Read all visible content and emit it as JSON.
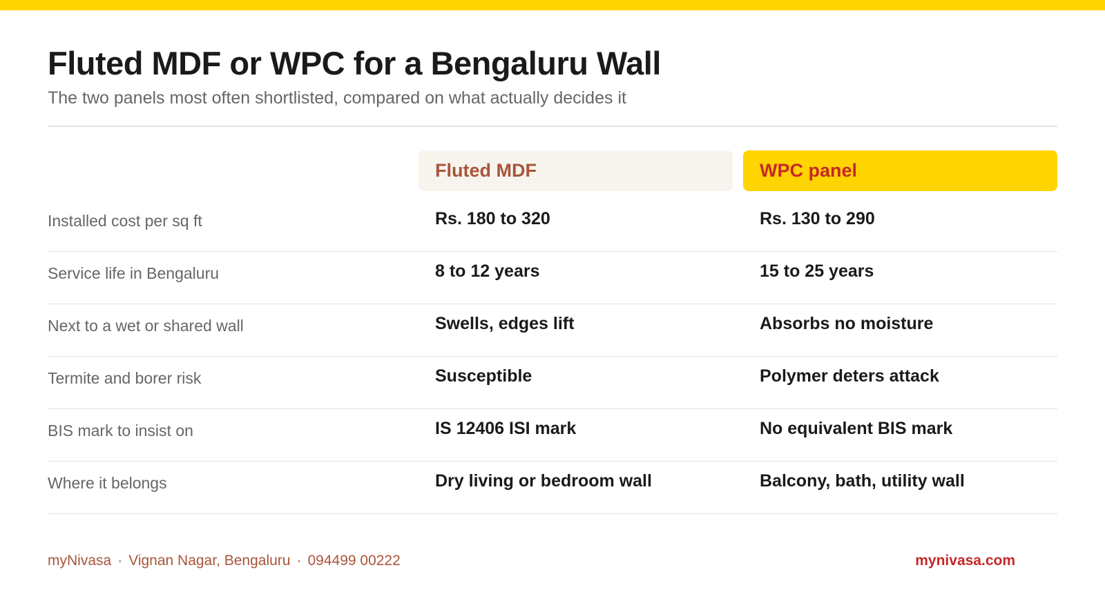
{
  "colors": {
    "accent_yellow": "#FFD400",
    "brand_red": "#C62828",
    "brand_brown": "#A8553A",
    "label_gray": "#666666",
    "header_cream": "#F7F4EE"
  },
  "header": {
    "title": "Fluted MDF or WPC for a Bengaluru Wall",
    "subtitle": "The two panels most often shortlisted, compared on what actually decides it"
  },
  "columns": {
    "mdf": "Fluted MDF",
    "wpc": "WPC panel"
  },
  "rows": [
    {
      "label": "Installed cost per sq ft",
      "mdf": "Rs. 180 to 320",
      "wpc": "Rs. 130 to 290"
    },
    {
      "label": "Service life in Bengaluru",
      "mdf": "8 to 12 years",
      "wpc": "15 to 25 years"
    },
    {
      "label": "Next to a wet or shared wall",
      "mdf": "Swells, edges lift",
      "wpc": "Absorbs no moisture"
    },
    {
      "label": "Termite and borer risk",
      "mdf": "Susceptible",
      "wpc": "Polymer deters attack"
    },
    {
      "label": "BIS mark to insist on",
      "mdf": "IS 12406 ISI mark",
      "wpc": "No equivalent BIS mark"
    },
    {
      "label": "Where it belongs",
      "mdf": "Dry living or bedroom wall",
      "wpc": "Balcony, bath, utility wall"
    }
  ],
  "footer": {
    "brand": "myNivasa",
    "separator": "·",
    "location": "Vignan Nagar, Bengaluru",
    "phone": "094499 00222",
    "website": "mynivasa.com"
  }
}
